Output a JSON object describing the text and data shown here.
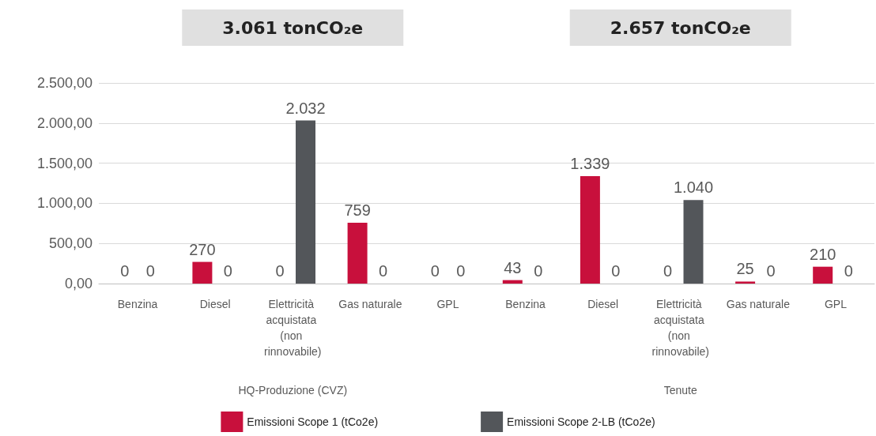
{
  "chart_data": {
    "type": "bar",
    "categories": [
      "Benzina",
      "Diesel",
      "Elettricità acquistata (non rinnovabile)",
      "Gas naturale",
      "GPL",
      "Benzina",
      "Diesel",
      "Elettricità acquistata (non rinnovabile)",
      "Gas naturale",
      "GPL"
    ],
    "series": [
      {
        "name": "Emissioni Scope 1 (tCo2e)",
        "color": "#c8103c",
        "values": [
          0,
          270,
          0,
          759,
          0,
          43,
          1339,
          0,
          25,
          210
        ],
        "value_labels": [
          "0",
          "270",
          "0",
          "759",
          "0",
          "43",
          "1.339",
          "0",
          "25",
          "210"
        ]
      },
      {
        "name": "Emissioni Scope 2-LB (tCo2e)",
        "color": "#53565a",
        "values": [
          0,
          0,
          2032,
          0,
          0,
          0,
          0,
          1040,
          0,
          0
        ],
        "value_labels": [
          "0",
          "0",
          "2.032",
          "0",
          "0",
          "0",
          "0",
          "1.040",
          "0",
          "0"
        ]
      }
    ],
    "ylim": [
      0,
      2500
    ],
    "yticks": [
      {
        "value": 0,
        "label": "0,00"
      },
      {
        "value": 500,
        "label": "500,00"
      },
      {
        "value": 1000,
        "label": "1.000,00"
      },
      {
        "value": 1500,
        "label": "1.500,00"
      },
      {
        "value": 2000,
        "label": "2.000,00"
      },
      {
        "value": 2500,
        "label": "2.500,00"
      }
    ],
    "grid": "y",
    "legend": "bottom",
    "annotations": [
      "3.061 tonCO₂e",
      "2.657 tonCO₂e",
      "HQ-Produzione (CVZ)",
      "Tenute"
    ]
  }
}
